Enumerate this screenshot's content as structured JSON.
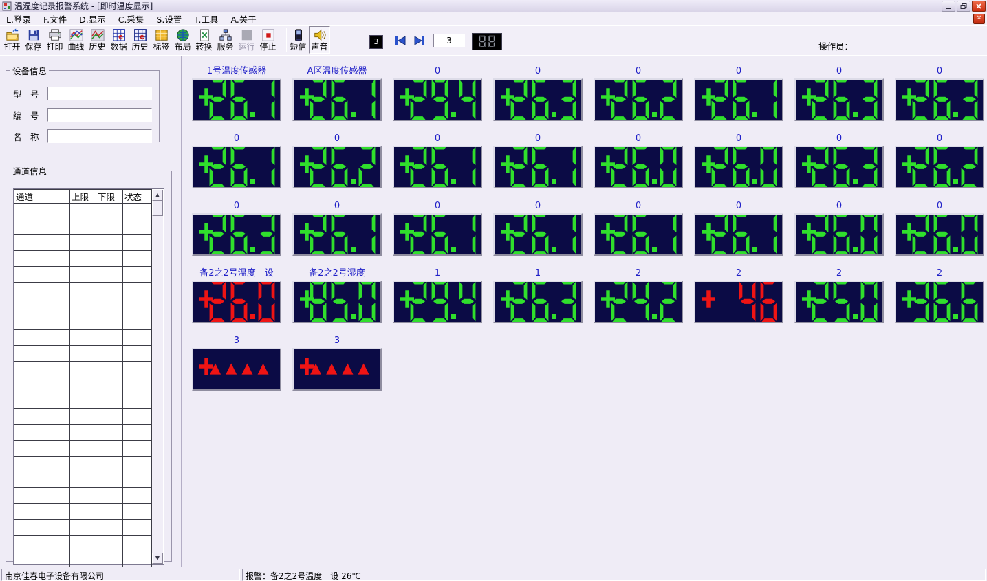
{
  "colors": {
    "led_bg": "#0b0b45",
    "led_green": "#30df2c",
    "led_red": "#ef1414",
    "label_blue": "#2121c8",
    "seg_dim": "#8d929c"
  },
  "window": {
    "title": "温湿度记录报警系统 - [即时温度显示]",
    "controls": {
      "minimize": "minimize",
      "restore": "restore",
      "close": "close"
    }
  },
  "menu": {
    "items": [
      "L.登录",
      "F.文件",
      "D.显示",
      "C.采集",
      "S.设置",
      "T.工具",
      "A.关于"
    ]
  },
  "toolbar": {
    "buttons": [
      {
        "label": "打开",
        "icon": "open-folder"
      },
      {
        "label": "保存",
        "icon": "save-floppy"
      },
      {
        "label": "打印",
        "icon": "printer"
      },
      {
        "label": "曲线",
        "icon": "curve-chart"
      },
      {
        "label": "历史",
        "icon": "history-curve"
      },
      {
        "label": "数据",
        "icon": "data-table"
      },
      {
        "label": "历史",
        "icon": "history-table"
      },
      {
        "label": "标签",
        "icon": "label-table"
      },
      {
        "label": "布局",
        "icon": "globe"
      },
      {
        "label": "转换",
        "icon": "convert-doc"
      },
      {
        "label": "服务",
        "icon": "network"
      },
      {
        "label": "运行",
        "icon": "run-square",
        "disabled": true
      },
      {
        "label": "停止",
        "icon": "stop-square"
      },
      {
        "type": "separator"
      },
      {
        "label": "短信",
        "icon": "sms-phone"
      },
      {
        "label": "声音",
        "icon": "speaker",
        "pressed": true
      }
    ],
    "page_badge": "3",
    "page_input": "3",
    "seg_badge": "88",
    "operator_label": "操作员："
  },
  "device_info": {
    "title": "设备信息",
    "fields": [
      {
        "label": "型　号",
        "value": ""
      },
      {
        "label": "编　号",
        "value": ""
      },
      {
        "label": "名　称",
        "value": ""
      }
    ]
  },
  "channel_info": {
    "title": "通道信息",
    "columns": [
      "通道",
      "上限",
      "下限",
      "状态"
    ],
    "rows": []
  },
  "displays": {
    "rows": [
      {
        "cells": [
          {
            "label": "1号温度传感器",
            "value": "26.1",
            "color": "green"
          },
          {
            "label": "A区温度传感器",
            "value": "26.1",
            "color": "green"
          },
          {
            "label": "0",
            "value": "29.4",
            "color": "green"
          },
          {
            "label": "0",
            "value": "26.3",
            "color": "green"
          },
          {
            "label": "0",
            "value": "26.2",
            "color": "green"
          },
          {
            "label": "0",
            "value": "26.1",
            "color": "green"
          },
          {
            "label": "0",
            "value": "26.3",
            "color": "green"
          },
          {
            "label": "0",
            "value": "26.3",
            "color": "green"
          }
        ]
      },
      {
        "cells": [
          {
            "label": "0",
            "value": "26.1",
            "color": "green"
          },
          {
            "label": "0",
            "value": "26.2",
            "color": "green"
          },
          {
            "label": "0",
            "value": "26.1",
            "color": "green"
          },
          {
            "label": "0",
            "value": "26.1",
            "color": "green"
          },
          {
            "label": "0",
            "value": "26.0",
            "color": "green"
          },
          {
            "label": "0",
            "value": "26.0",
            "color": "green"
          },
          {
            "label": "0",
            "value": "26.3",
            "color": "green"
          },
          {
            "label": "0",
            "value": "26.2",
            "color": "green"
          }
        ]
      },
      {
        "cells": [
          {
            "label": "0",
            "value": "26.3",
            "color": "green"
          },
          {
            "label": "0",
            "value": "26.1",
            "color": "green"
          },
          {
            "label": "0",
            "value": "26.1",
            "color": "green"
          },
          {
            "label": "0",
            "value": "26.1",
            "color": "green"
          },
          {
            "label": "0",
            "value": "26.1",
            "color": "green"
          },
          {
            "label": "0",
            "value": "26.1",
            "color": "green"
          },
          {
            "label": "0",
            "value": "26.0",
            "color": "green"
          },
          {
            "label": "0",
            "value": "26.0",
            "color": "green"
          }
        ]
      },
      {
        "cells": [
          {
            "label": "备2之2号温度　设",
            "value": "26.0",
            "color": "red"
          },
          {
            "label": "备2之2号湿度",
            "value": "85.0",
            "color": "green"
          },
          {
            "label": "1",
            "value": "29.4",
            "color": "green"
          },
          {
            "label": "1",
            "value": "26.3",
            "color": "green"
          },
          {
            "label": "2",
            "value": "24.2",
            "color": "green"
          },
          {
            "label": "2",
            "value": "46",
            "color": "red"
          },
          {
            "label": "2",
            "value": "25.0",
            "color": "green"
          },
          {
            "label": "2",
            "value": "36.6",
            "color": "green"
          }
        ]
      },
      {
        "cells": [
          {
            "label": "3",
            "type": "triangles",
            "color": "red"
          },
          {
            "label": "3",
            "type": "triangles",
            "color": "red"
          }
        ]
      }
    ]
  },
  "status_bar": {
    "left": "南京佳春电子设备有限公司",
    "right": "报警：备2之2号温度　设 26℃"
  }
}
